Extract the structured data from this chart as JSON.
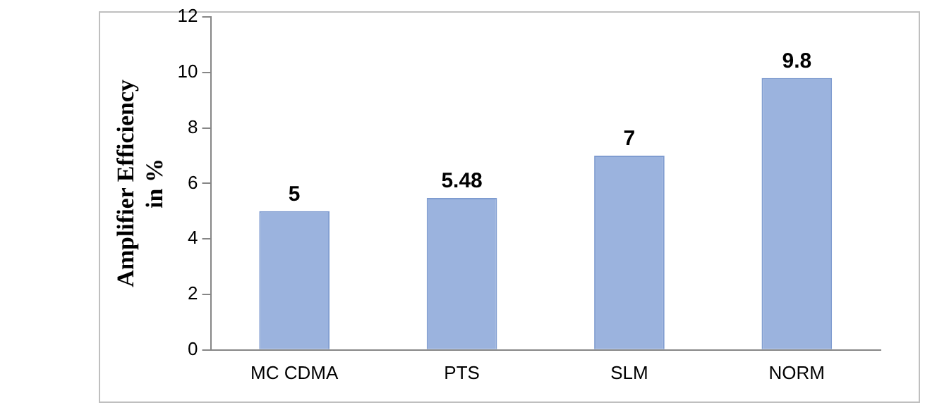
{
  "chart_data": {
    "type": "bar",
    "ylabel": "Amplifier Efficiency in %",
    "categories": [
      "MC CDMA",
      "PTS",
      "SLM",
      "NORM"
    ],
    "values": [
      5,
      5.48,
      7,
      9.8
    ],
    "color": "#9bb3de",
    "ylim": [
      0,
      12
    ],
    "yticks": [
      0,
      2,
      4,
      6,
      8,
      10,
      12
    ],
    "grid": false,
    "data_labels": true
  }
}
